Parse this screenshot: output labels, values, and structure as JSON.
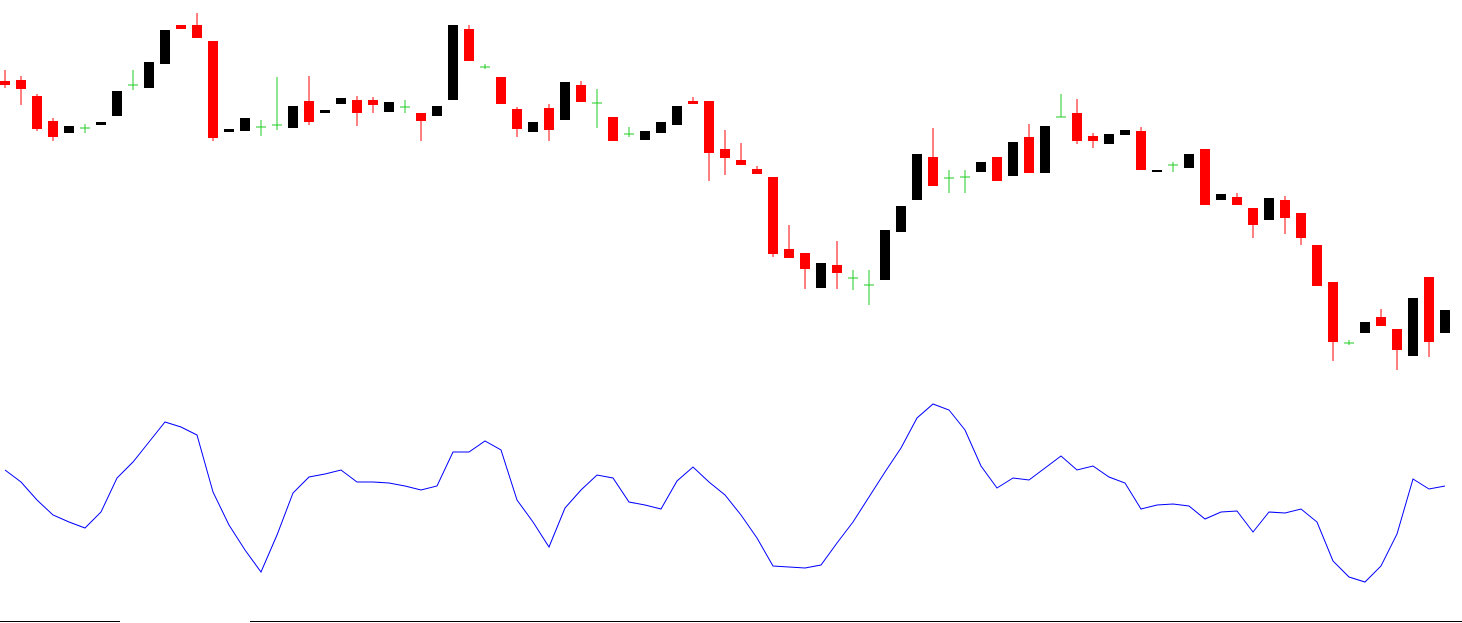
{
  "chart_data": [
    {
      "type": "candlestick",
      "up_color": "#000000",
      "down_color": "#ff0000",
      "flat_color": "#22cc22",
      "ylim": [
        0,
        400
      ],
      "open": [
        319,
        320,
        304,
        279,
        267,
        272,
        275,
        284,
        315,
        312,
        336,
        375,
        375,
        359,
        268,
        269,
        273,
        275,
        272,
        299,
        287,
        296,
        300,
        300,
        288,
        293,
        287,
        284,
        300,
        371,
        333,
        323,
        291,
        268,
        292,
        280,
        315,
        297,
        283,
        266,
        260,
        267,
        275,
        299,
        299,
        251,
        240,
        231,
        223,
        151,
        147,
        112,
        135,
        122,
        115,
        120,
        168,
        200,
        243,
        222,
        223,
        228,
        243,
        224,
        263,
        227,
        283,
        287,
        264,
        256,
        265,
        269,
        228,
        235,
        232,
        251,
        200,
        203,
        192,
        180,
        200,
        187,
        155,
        118,
        57,
        67,
        83,
        71,
        44,
        123,
        67
      ],
      "high": [
        330,
        324,
        306,
        282,
        274,
        276,
        278,
        309,
        330,
        338,
        370,
        375,
        387,
        359,
        271,
        282,
        280,
        323,
        294,
        324,
        290,
        302,
        304,
        303,
        298,
        300,
        287,
        294,
        375,
        375,
        336,
        323,
        293,
        278,
        296,
        318,
        319,
        311,
        283,
        273,
        269,
        278,
        294,
        303,
        299,
        270,
        257,
        234,
        223,
        175,
        147,
        137,
        159,
        130,
        130,
        170,
        194,
        246,
        272,
        230,
        230,
        238,
        243,
        258,
        276,
        274,
        306,
        301,
        267,
        266,
        270,
        273,
        230,
        238,
        246,
        251,
        206,
        207,
        192,
        202,
        204,
        187,
        155,
        118,
        60,
        78,
        91,
        71,
        102,
        123,
        90
      ],
      "low": [
        312,
        295,
        269,
        259,
        267,
        267,
        275,
        284,
        310,
        312,
        336,
        371,
        362,
        259,
        268,
        269,
        264,
        270,
        272,
        275,
        287,
        296,
        274,
        287,
        288,
        287,
        259,
        284,
        300,
        339,
        331,
        296,
        263,
        268,
        259,
        280,
        298,
        272,
        259,
        263,
        260,
        267,
        275,
        296,
        219,
        225,
        235,
        226,
        143,
        142,
        111,
        112,
        111,
        110,
        95,
        120,
        168,
        200,
        214,
        207,
        207,
        228,
        219,
        224,
        227,
        227,
        283,
        256,
        252,
        256,
        265,
        230,
        228,
        228,
        232,
        195,
        200,
        195,
        162,
        180,
        166,
        155,
        114,
        39,
        55,
        67,
        74,
        30,
        44,
        43,
        67
      ],
      "close": [
        315,
        311,
        271,
        263,
        274,
        272,
        278,
        309,
        315,
        338,
        370,
        371,
        362,
        262,
        271,
        282,
        273,
        275,
        294,
        278,
        290,
        302,
        287,
        295,
        298,
        293,
        279,
        294,
        375,
        339,
        333,
        296,
        271,
        278,
        270,
        318,
        298,
        297,
        259,
        266,
        269,
        278,
        294,
        296,
        247,
        242,
        235,
        226,
        146,
        142,
        131,
        137,
        127,
        122,
        115,
        170,
        194,
        246,
        214,
        222,
        223,
        238,
        219,
        258,
        227,
        274,
        283,
        259,
        259,
        266,
        270,
        230,
        230,
        235,
        246,
        195,
        206,
        195,
        175,
        202,
        182,
        162,
        114,
        58,
        57,
        78,
        74,
        50,
        102,
        58,
        90
      ]
    },
    {
      "type": "line",
      "color": "#0000ff",
      "ylim": [
        0,
        230
      ],
      "values": [
        150,
        138,
        120,
        105,
        98,
        92,
        108,
        142,
        158,
        178,
        198,
        193,
        185,
        128,
        95,
        70,
        48,
        85,
        127,
        143,
        146,
        150,
        138,
        138,
        137,
        134,
        130,
        134,
        168,
        168,
        179,
        170,
        120,
        98,
        73,
        112,
        130,
        145,
        142,
        118,
        115,
        111,
        139,
        153,
        138,
        125,
        105,
        82,
        54,
        53,
        52,
        55,
        77,
        98,
        123,
        148,
        172,
        202,
        216,
        210,
        190,
        154,
        132,
        142,
        140,
        152,
        164,
        150,
        154,
        143,
        137,
        111,
        115,
        116,
        114,
        101,
        108,
        109,
        88,
        108,
        107,
        111,
        98,
        59,
        43,
        38,
        54,
        86,
        141,
        131,
        134
      ]
    }
  ]
}
